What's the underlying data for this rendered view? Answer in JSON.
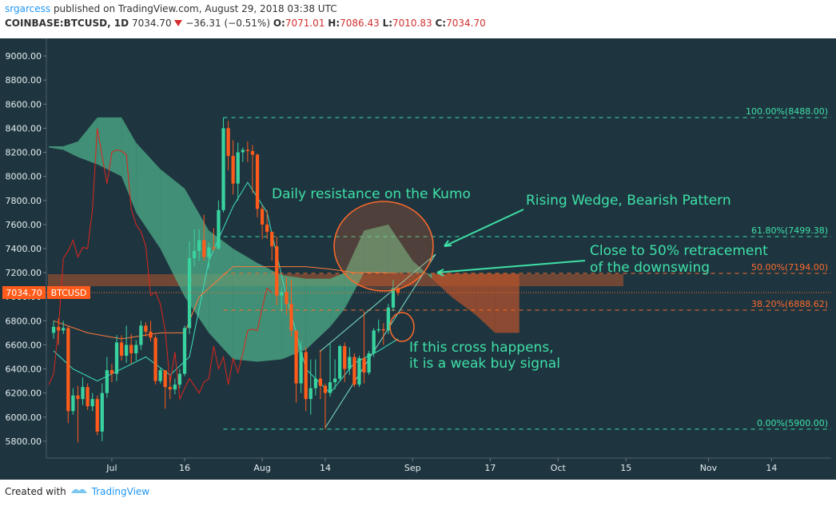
{
  "header": {
    "author": "srgarcess",
    "published": "published on TradingView.com, August 29, 2018 03:38 UTC",
    "symbol": "COINBASE:BTCUSD, 1D",
    "price": "7034.70",
    "change": "−36.31 (−0.51%)",
    "ohlc": [
      {
        "key": "O:",
        "value": "7071.01"
      },
      {
        "key": "H:",
        "value": "7086.43"
      },
      {
        "key": "L:",
        "value": "7010.83"
      },
      {
        "key": "C:",
        "value": "7034.70"
      }
    ]
  },
  "footer": {
    "prefix": "Created with",
    "brand": "TradingView"
  },
  "chart_data": {
    "type": "candlestick",
    "x": [
      -12,
      -11,
      -10,
      -9,
      -8,
      -7,
      -6,
      -5,
      -4,
      -3,
      -2,
      -1,
      0,
      1,
      2,
      3,
      4,
      5,
      6,
      7,
      8,
      9,
      10,
      11,
      12,
      13,
      14,
      15,
      16,
      17,
      18,
      19,
      20,
      21,
      22,
      23,
      24,
      25,
      26,
      27,
      28,
      29,
      30,
      31,
      32,
      33,
      34,
      35,
      36,
      37,
      38,
      39,
      40,
      41,
      42,
      43,
      44,
      45,
      46,
      47,
      48,
      49,
      50,
      51,
      52,
      53,
      54,
      55,
      56,
      57,
      58,
      59
    ],
    "open": [
      6700,
      6750,
      6720,
      6740,
      6050,
      6180,
      6150,
      6250,
      6090,
      6150,
      5880,
      6200,
      6390,
      6360,
      6620,
      6510,
      6600,
      6530,
      6600,
      6760,
      6710,
      6660,
      6300,
      6390,
      6250,
      6230,
      6270,
      6360,
      6740,
      7320,
      7380,
      7470,
      7330,
      7410,
      7400,
      7720,
      8400,
      8170,
      7940,
      8200,
      8220,
      8210,
      8180,
      7730,
      7600,
      7540,
      7420,
      7010,
      7040,
      6940,
      6720,
      6280,
      6540,
      6150,
      6240,
      6320,
      6260,
      6200,
      6290,
      6320,
      6590,
      6400,
      6500,
      6270,
      6490,
      6370,
      6530,
      6720,
      6730,
      6720,
      6910,
      7071.01
    ],
    "high": [
      6800,
      6820,
      6800,
      6760,
      6240,
      6260,
      6330,
      6280,
      6200,
      6180,
      6280,
      6500,
      6440,
      6680,
      6680,
      6760,
      6690,
      6640,
      6800,
      6790,
      6800,
      6680,
      6410,
      6390,
      6340,
      6320,
      6400,
      6760,
      7460,
      7560,
      7560,
      7680,
      7450,
      7570,
      7800,
      8488,
      8460,
      8300,
      8280,
      8240,
      8290,
      8260,
      8190,
      7760,
      7720,
      7540,
      7500,
      7080,
      7160,
      7140,
      6720,
      6630,
      6580,
      6480,
      6480,
      6560,
      6280,
      6610,
      6480,
      6600,
      6620,
      6580,
      6530,
      6510,
      6880,
      6550,
      6740,
      6810,
      6780,
      6940,
      7140,
      7086.43
    ],
    "low": [
      6650,
      6600,
      6690,
      5950,
      6020,
      5790,
      6100,
      6060,
      6050,
      5850,
      5800,
      6160,
      6290,
      6300,
      6470,
      6450,
      6440,
      6470,
      6560,
      6670,
      6630,
      6270,
      6280,
      6070,
      6150,
      6190,
      6240,
      6340,
      6690,
      7250,
      7300,
      7300,
      7230,
      7380,
      7390,
      7700,
      8050,
      7850,
      7800,
      8120,
      8120,
      7860,
      7660,
      7480,
      7480,
      7300,
      6930,
      6880,
      6850,
      6670,
      6120,
      6200,
      6050,
      6020,
      6180,
      6150,
      5900,
      6170,
      6230,
      6300,
      6290,
      6350,
      6250,
      6250,
      6280,
      6350,
      6500,
      6700,
      6600,
      6690,
      6880,
      7010.83
    ],
    "close": [
      6750,
      6720,
      6740,
      6050,
      6180,
      6150,
      6250,
      6090,
      6150,
      5880,
      6200,
      6390,
      6360,
      6620,
      6510,
      6600,
      6530,
      6600,
      6760,
      6710,
      6660,
      6300,
      6390,
      6250,
      6230,
      6270,
      6360,
      6740,
      7320,
      7380,
      7470,
      7330,
      7410,
      7400,
      7720,
      8400,
      8170,
      7940,
      8200,
      8220,
      8210,
      8180,
      7730,
      7600,
      7540,
      7420,
      7010,
      7040,
      6940,
      6720,
      6280,
      6540,
      6150,
      6240,
      6320,
      6260,
      6200,
      6290,
      6320,
      6590,
      6400,
      6500,
      6270,
      6490,
      6370,
      6530,
      6720,
      6730,
      6720,
      6910,
      7071.01,
      7034.7
    ],
    "up_color": "#39d39f",
    "down_color": "#ff5b1a",
    "ichimoku": {
      "x": [
        -13,
        -10,
        -7,
        -3,
        2,
        5,
        10,
        15,
        20,
        25,
        30,
        35,
        40,
        45,
        48,
        52,
        57,
        62,
        66,
        70,
        75,
        79,
        84
      ],
      "span_a": [
        8250,
        8250,
        8290,
        8490,
        8490,
        8280,
        8060,
        7900,
        7550,
        7400,
        7280,
        7180,
        7150,
        7150,
        7200,
        7550,
        7600,
        7300,
        7150,
        7000,
        6850,
        6700,
        6700
      ],
      "span_b": [
        8240,
        8220,
        8160,
        8100,
        8000,
        7700,
        7400,
        7000,
        6700,
        6480,
        6460,
        6480,
        6560,
        6750,
        6900,
        7200,
        7200,
        7200,
        7190,
        7190,
        7190,
        7190,
        7190
      ],
      "bull_color": "#4fb38a",
      "bear_color": "#b5532b"
    },
    "tenkan": {
      "x": [
        -12,
        -8,
        -3,
        2,
        7,
        12,
        16,
        20,
        25,
        28,
        32,
        36,
        40,
        45,
        50,
        55,
        59
      ],
      "values": [
        6550,
        6400,
        6300,
        6400,
        6500,
        6350,
        6500,
        7300,
        7750,
        7950,
        7700,
        7000,
        6400,
        6200,
        6450,
        6550,
        6650
      ],
      "color": "#3fe0c0"
    },
    "kijun": {
      "x": [
        -12,
        -5,
        2,
        10,
        15,
        18,
        25,
        32,
        40,
        45,
        50,
        55,
        59
      ],
      "values": [
        6800,
        6700,
        6650,
        6700,
        6700,
        7000,
        7250,
        7250,
        7250,
        7230,
        7200,
        7200,
        7194
      ],
      "color": "#ff7a3a"
    },
    "chikou_shift": 26,
    "chikou_color": "#e0251b",
    "fib_levels": [
      {
        "value": 8488,
        "label": "100.00%(8488.00)",
        "color": "#3fe0a6"
      },
      {
        "value": 7499.38,
        "label": "61.80%(7499.38)",
        "color": "#3fe0a6"
      },
      {
        "value": 7194,
        "label": "50.00%(7194.00)",
        "color": "#ff6a2a"
      },
      {
        "value": 6888.62,
        "label": "38.20%(6888.62)",
        "color": "#ff6a2a"
      },
      {
        "value": 5900,
        "label": "0.00%(5900.00)",
        "color": "#3fe0a6"
      }
    ],
    "fib_start": 23,
    "last_price": {
      "value": 7034.7,
      "label": "7034.70"
    },
    "symbol": "BTCUSD",
    "annotations": [
      "Daily resistance on the Kumo",
      "Rising Wedge, Bearish Pattern",
      "Close to 50% retracement",
      "of the downswing",
      "If this cross happens,",
      "it is a weak buy signal"
    ],
    "xlim": [
      -13.5,
      148.3
    ],
    "ylim": [
      5660,
      9100
    ],
    "xticks": [
      {
        "value": 0,
        "label": "Jul"
      },
      {
        "value": 15,
        "label": "16"
      },
      {
        "value": 31,
        "label": "Aug"
      },
      {
        "value": 44,
        "label": "14"
      },
      {
        "value": 62,
        "label": "Sep"
      },
      {
        "value": 78,
        "label": "17"
      },
      {
        "value": 92,
        "label": "Oct"
      },
      {
        "value": 106,
        "label": "15"
      },
      {
        "value": 123,
        "label": "Nov"
      },
      {
        "value": 136,
        "label": "14"
      }
    ],
    "yticks": [
      {
        "value": 5800,
        "label": "5800.00"
      },
      {
        "value": 6000,
        "label": "6000.00"
      },
      {
        "value": 6200,
        "label": "6200.00"
      },
      {
        "value": 6400,
        "label": "6400.00"
      },
      {
        "value": 6600,
        "label": "6600.00"
      },
      {
        "value": 6800,
        "label": "6800.00"
      },
      {
        "value": 7000,
        "label": "7000.00"
      },
      {
        "value": 7200,
        "label": "7200.00"
      },
      {
        "value": 7400,
        "label": "7400.00"
      },
      {
        "value": 7600,
        "label": "7600.00"
      },
      {
        "value": 7800,
        "label": "7800.00"
      },
      {
        "value": 8000,
        "label": "8000.00"
      },
      {
        "value": 8200,
        "label": "8200.00"
      },
      {
        "value": 8400,
        "label": "8400.00"
      },
      {
        "value": 8600,
        "label": "8600.00"
      },
      {
        "value": 8800,
        "label": "8800.00"
      },
      {
        "value": 9000,
        "label": "9000.00"
      }
    ]
  }
}
